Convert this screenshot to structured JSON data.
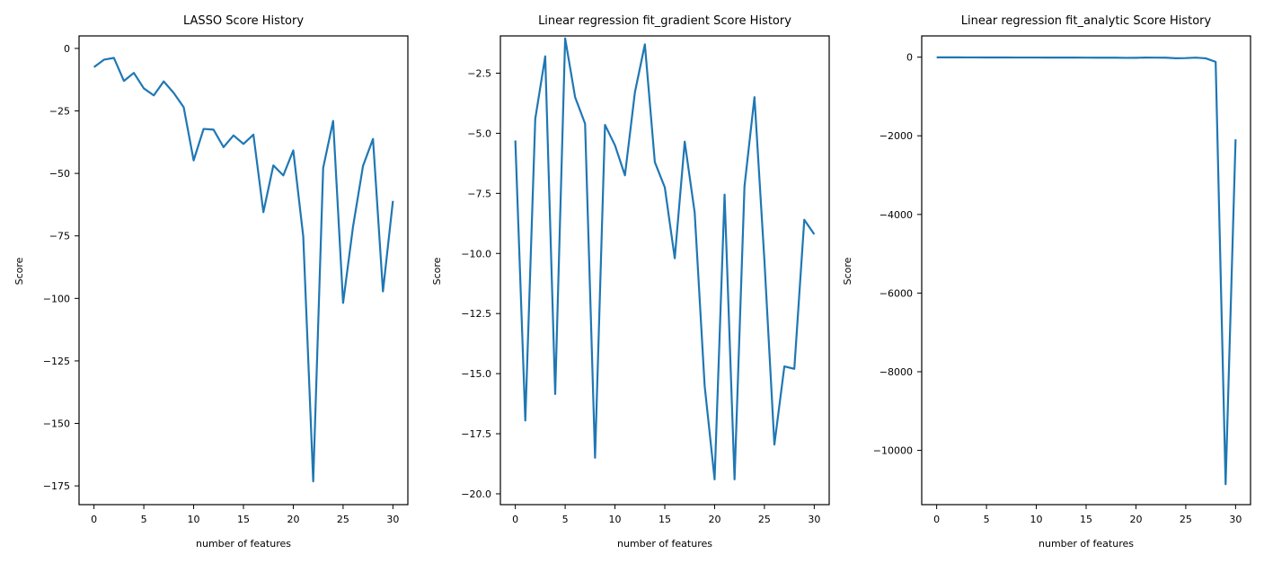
{
  "colors": {
    "series": "#1f77b4",
    "axes": "#000000",
    "background": "#ffffff"
  },
  "chart_data": [
    {
      "type": "line",
      "title": "LASSO Score History",
      "xlabel": "number of features",
      "ylabel": "Score",
      "grid": false,
      "xlim": [
        -1.5,
        31.5
      ],
      "ylim": [
        -182.5,
        5
      ],
      "xticks": [
        0,
        5,
        10,
        15,
        20,
        25,
        30
      ],
      "xtick_labels": [
        "0",
        "5",
        "10",
        "15",
        "20",
        "25",
        "30"
      ],
      "yticks": [
        0,
        -25,
        -50,
        -75,
        -100,
        -125,
        -150,
        -175
      ],
      "ytick_labels": [
        "0",
        "−25",
        "−50",
        "−75",
        "−100",
        "−125",
        "−150",
        "−175"
      ],
      "x": [
        0,
        1,
        2,
        3,
        4,
        5,
        6,
        7,
        8,
        9,
        10,
        11,
        12,
        13,
        14,
        15,
        16,
        17,
        18,
        19,
        20,
        21,
        22,
        23,
        24,
        25,
        26,
        27,
        28,
        29,
        30
      ],
      "series": [
        {
          "values": [
            -7.5,
            -4.5,
            -3.8,
            -13,
            -9.8,
            -16,
            -18.8,
            -13.2,
            -17.8,
            -23.5,
            -44.8,
            -32.2,
            -32.5,
            -39.5,
            -34.8,
            -38.2,
            -34.5,
            -65.5,
            -46.8,
            -50.8,
            -40.8,
            -75.2,
            -173.2,
            -47.8,
            -29,
            -101.8,
            -71.2,
            -47,
            -36.2,
            -97.2,
            -61
          ]
        }
      ]
    },
    {
      "type": "line",
      "title": "Linear regression fit_gradient Score History",
      "xlabel": "number of features",
      "ylabel": "Score",
      "grid": false,
      "xlim": [
        -1.5,
        31.5
      ],
      "ylim": [
        -20.45,
        -0.95
      ],
      "xticks": [
        0,
        5,
        10,
        15,
        20,
        25,
        30
      ],
      "xtick_labels": [
        "0",
        "5",
        "10",
        "15",
        "20",
        "25",
        "30"
      ],
      "yticks": [
        -2.5,
        -5.0,
        -7.5,
        -10.0,
        -12.5,
        -15.0,
        -17.5,
        -20.0
      ],
      "ytick_labels": [
        "−2.5",
        "−5.0",
        "−7.5",
        "−10.0",
        "−12.5",
        "−15.0",
        "−17.5",
        "−20.0"
      ],
      "x": [
        0,
        1,
        2,
        3,
        4,
        5,
        6,
        7,
        8,
        9,
        10,
        11,
        12,
        13,
        14,
        15,
        16,
        17,
        18,
        19,
        20,
        21,
        22,
        23,
        24,
        25,
        26,
        27,
        28,
        29,
        30
      ],
      "series": [
        {
          "values": [
            -5.3,
            -16.95,
            -4.4,
            -1.8,
            -15.85,
            -1.05,
            -3.5,
            -4.6,
            -18.5,
            -4.65,
            -5.5,
            -6.75,
            -3.3,
            -1.3,
            -6.2,
            -7.25,
            -10.2,
            -5.35,
            -8.3,
            -15.5,
            -19.4,
            -7.55,
            -19.4,
            -7.2,
            -3.5,
            -10.3,
            -17.95,
            -14.7,
            -14.8,
            -8.6,
            -9.2
          ]
        }
      ]
    },
    {
      "type": "line",
      "title": "Linear regression fit_analytic Score History",
      "xlabel": "number of features",
      "ylabel": "Score",
      "grid": false,
      "xlim": [
        -1.5,
        31.5
      ],
      "ylim": [
        -11380,
        540
      ],
      "xticks": [
        0,
        5,
        10,
        15,
        20,
        25,
        30
      ],
      "xtick_labels": [
        "0",
        "5",
        "10",
        "15",
        "20",
        "25",
        "30"
      ],
      "yticks": [
        0,
        -2000,
        -4000,
        -6000,
        -8000,
        -10000
      ],
      "ytick_labels": [
        "0",
        "−2000",
        "−4000",
        "−6000",
        "−8000",
        "−10000"
      ],
      "x": [
        0,
        1,
        2,
        3,
        4,
        5,
        6,
        7,
        8,
        9,
        10,
        11,
        12,
        13,
        14,
        15,
        16,
        17,
        18,
        19,
        20,
        21,
        22,
        23,
        24,
        25,
        26,
        27,
        28,
        29,
        30
      ],
      "series": [
        {
          "values": [
            -5,
            -6,
            -6,
            -7,
            -7,
            -8,
            -8,
            -8,
            -9,
            -9,
            -9,
            -10,
            -10,
            -10,
            -11,
            -12,
            -13,
            -13,
            -14,
            -18,
            -16,
            -10,
            -12,
            -14,
            -28,
            -24,
            -12,
            -30,
            -120,
            -10860,
            -2090
          ]
        }
      ]
    }
  ]
}
